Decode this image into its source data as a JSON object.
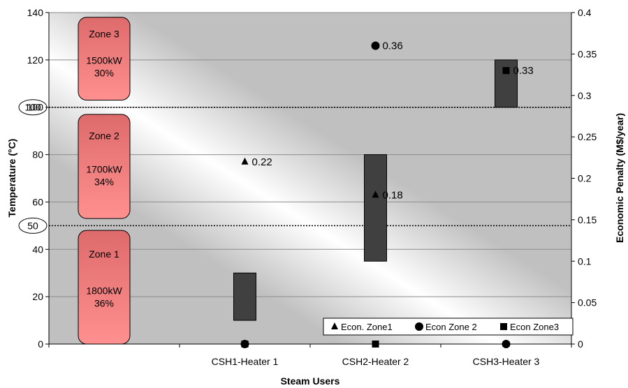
{
  "chart_data": {
    "type": "bar",
    "xlabel": "Steam Users",
    "ylabel": "Temperature (°C)",
    "y2label": "Economic Penalty (M$/year)",
    "categories": [
      "CSH1-Heater 1",
      "CSH2-Heater 2",
      "CSH3-Heater 3"
    ],
    "ylim": [
      0,
      140
    ],
    "y2lim": [
      0,
      0.4
    ],
    "yticks": [
      "0",
      "20",
      "40",
      "60",
      "80",
      "100",
      "120",
      "140"
    ],
    "y2ticks": [
      "0",
      "0.05",
      "0.1",
      "0.15",
      "0.2",
      "0.25",
      "0.3",
      "0.35",
      "0.4"
    ],
    "grid": true,
    "legend_position": "bottom-right",
    "ranges": [
      {
        "category": "CSH1-Heater 1",
        "low": 10,
        "high": 30
      },
      {
        "category": "CSH2-Heater 2",
        "low": 35,
        "high": 80
      },
      {
        "category": "CSH3-Heater 3",
        "low": 100,
        "high": 120
      }
    ],
    "series": [
      {
        "name": "Econ. Zone1",
        "marker": "triangle",
        "values": [
          0.22,
          0.18,
          0
        ]
      },
      {
        "name": "Econ Zone 2",
        "marker": "circle",
        "values": [
          0,
          0.36,
          0
        ]
      },
      {
        "name": "Econ Zone3",
        "marker": "square",
        "values": [
          0,
          0,
          0.33
        ]
      }
    ],
    "point_labels": [
      {
        "series": 0,
        "category": 0,
        "text": "0.22"
      },
      {
        "series": 0,
        "category": 1,
        "text": "0.18"
      },
      {
        "series": 1,
        "category": 1,
        "text": "0.36"
      },
      {
        "series": 2,
        "category": 2,
        "text": "0.33"
      }
    ],
    "thresholds": [
      {
        "value": 50,
        "label": "50"
      },
      {
        "value": 100,
        "label": "100"
      }
    ],
    "zones": [
      {
        "name": "Zone 1",
        "power": "1800kW",
        "share": "36%",
        "low": 0,
        "high": 48
      },
      {
        "name": "Zone 2",
        "power": "1700kW",
        "share": "34%",
        "low": 53,
        "high": 97
      },
      {
        "name": "Zone 3",
        "power": "1500kW",
        "share": "30%",
        "low": 103,
        "high": 138
      }
    ]
  },
  "colors": {
    "plot_background": "#c0c0c0",
    "band_highlight": "#ffffff",
    "range_bar": "#404040",
    "zone_box": "#e06868",
    "marker": "#000000"
  }
}
